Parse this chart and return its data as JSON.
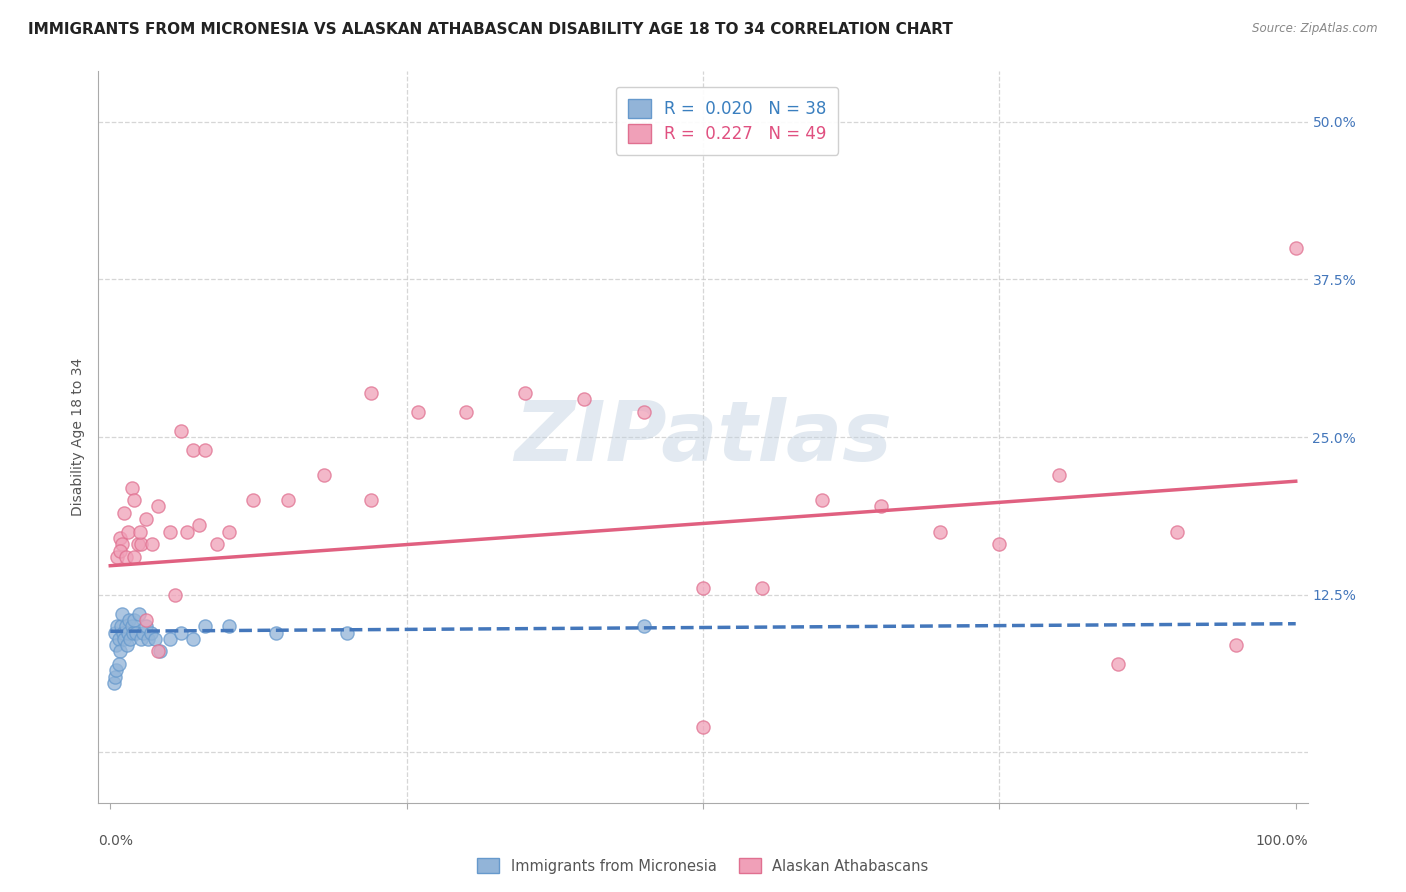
{
  "title": "IMMIGRANTS FROM MICRONESIA VS ALASKAN ATHABASCAN DISABILITY AGE 18 TO 34 CORRELATION CHART",
  "source": "Source: ZipAtlas.com",
  "ylabel": "Disability Age 18 to 34",
  "xlim": [
    -0.01,
    1.01
  ],
  "ylim": [
    -0.04,
    0.54
  ],
  "yticks": [
    0.0,
    0.125,
    0.25,
    0.375,
    0.5
  ],
  "yticklabels": [
    "",
    "12.5%",
    "25.0%",
    "37.5%",
    "50.0%"
  ],
  "legend_entries": [
    {
      "label": "R =  0.020   N = 38",
      "face_color": "#aec6e8",
      "edge_color": "#7aaad0",
      "text_color": "#3a7fbf"
    },
    {
      "label": "R =  0.227   N = 49",
      "face_color": "#f4b8c8",
      "edge_color": "#e07090",
      "text_color": "#e05080"
    }
  ],
  "blue_scatter_x": [
    0.004,
    0.005,
    0.006,
    0.007,
    0.008,
    0.009,
    0.01,
    0.011,
    0.012,
    0.013,
    0.014,
    0.015,
    0.016,
    0.017,
    0.018,
    0.019,
    0.02,
    0.022,
    0.024,
    0.026,
    0.028,
    0.03,
    0.032,
    0.034,
    0.038,
    0.042,
    0.05,
    0.06,
    0.07,
    0.08,
    0.1,
    0.14,
    0.2,
    0.003,
    0.004,
    0.005,
    0.007,
    0.45
  ],
  "blue_scatter_y": [
    0.095,
    0.085,
    0.1,
    0.09,
    0.08,
    0.1,
    0.11,
    0.095,
    0.09,
    0.1,
    0.085,
    0.095,
    0.105,
    0.09,
    0.1,
    0.095,
    0.105,
    0.095,
    0.11,
    0.09,
    0.095,
    0.1,
    0.09,
    0.095,
    0.09,
    0.08,
    0.09,
    0.095,
    0.09,
    0.1,
    0.1,
    0.095,
    0.095,
    0.055,
    0.06,
    0.065,
    0.07,
    0.1
  ],
  "pink_scatter_x": [
    0.006,
    0.008,
    0.01,
    0.012,
    0.015,
    0.018,
    0.02,
    0.023,
    0.026,
    0.03,
    0.035,
    0.04,
    0.05,
    0.06,
    0.07,
    0.08,
    0.09,
    0.1,
    0.12,
    0.15,
    0.18,
    0.22,
    0.26,
    0.3,
    0.35,
    0.4,
    0.45,
    0.5,
    0.55,
    0.6,
    0.65,
    0.7,
    0.75,
    0.8,
    0.85,
    0.9,
    0.95,
    1.0,
    0.008,
    0.013,
    0.02,
    0.025,
    0.03,
    0.04,
    0.055,
    0.065,
    0.075,
    0.22,
    0.5
  ],
  "pink_scatter_y": [
    0.155,
    0.17,
    0.165,
    0.19,
    0.175,
    0.21,
    0.2,
    0.165,
    0.165,
    0.185,
    0.165,
    0.195,
    0.175,
    0.255,
    0.24,
    0.24,
    0.165,
    0.175,
    0.2,
    0.2,
    0.22,
    0.2,
    0.27,
    0.27,
    0.285,
    0.28,
    0.27,
    0.13,
    0.13,
    0.2,
    0.195,
    0.175,
    0.165,
    0.22,
    0.07,
    0.175,
    0.085,
    0.4,
    0.16,
    0.155,
    0.155,
    0.175,
    0.105,
    0.08,
    0.125,
    0.175,
    0.18,
    0.285,
    0.02
  ],
  "blue_trend_x": [
    0.0,
    1.0
  ],
  "blue_trend_y": [
    0.096,
    0.102
  ],
  "pink_trend_x": [
    0.0,
    1.0
  ],
  "pink_trend_y": [
    0.148,
    0.215
  ],
  "watermark": "ZIPatlas",
  "bg_color": "#ffffff",
  "grid_color": "#cccccc",
  "blue_scatter_color": "#92b4d8",
  "blue_scatter_edge": "#6699cc",
  "pink_scatter_color": "#f0a0b8",
  "pink_scatter_edge": "#e07090",
  "blue_line_color": "#4477bb",
  "pink_line_color": "#e06080",
  "scatter_size": 90,
  "title_fontsize": 11,
  "tick_fontsize": 10,
  "ylabel_fontsize": 10
}
